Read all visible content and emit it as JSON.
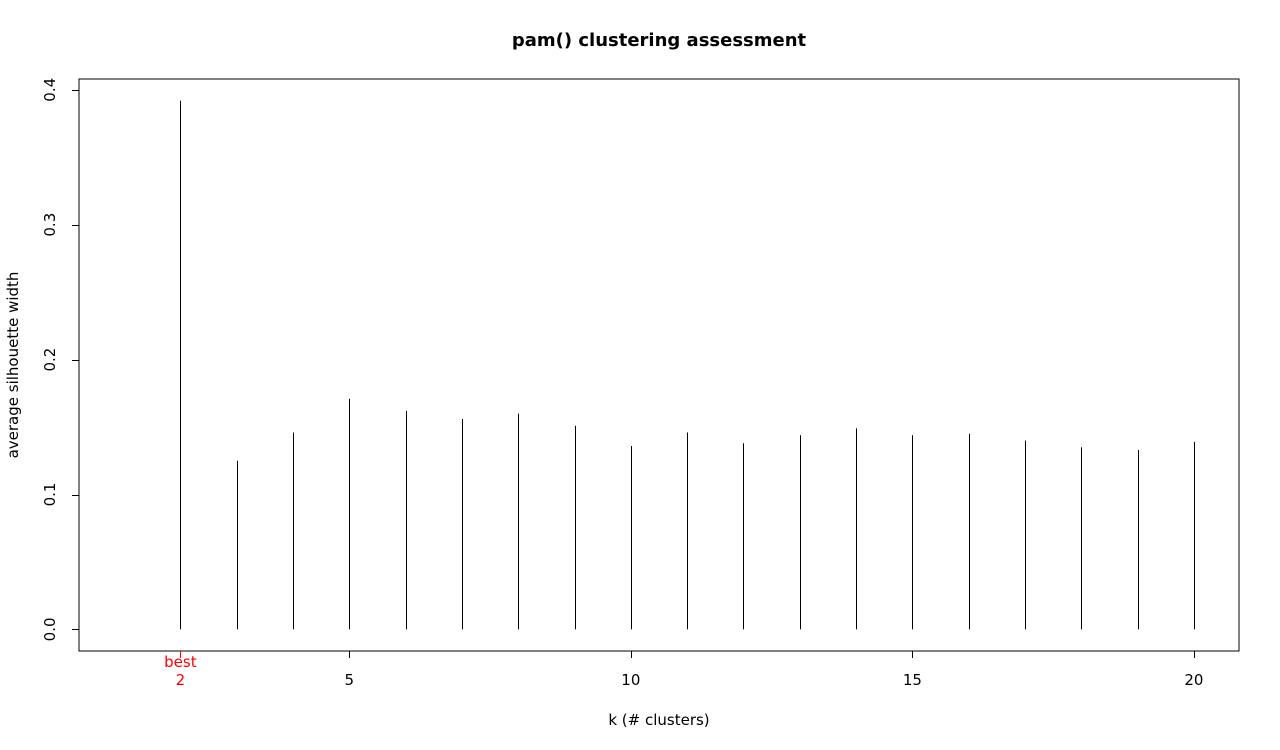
{
  "chart_data": {
    "type": "bar",
    "title": "pam() clustering assessment",
    "xlabel": "k  (# clusters)",
    "ylabel": "average silhouette width",
    "x": [
      1,
      2,
      3,
      4,
      5,
      6,
      7,
      8,
      9,
      10,
      11,
      12,
      13,
      14,
      15,
      16,
      17,
      18,
      19,
      20
    ],
    "values": [
      0.0,
      0.392,
      0.125,
      0.146,
      0.171,
      0.162,
      0.156,
      0.16,
      0.151,
      0.136,
      0.146,
      0.138,
      0.144,
      0.149,
      0.144,
      0.145,
      0.14,
      0.135,
      0.133,
      0.139
    ],
    "xlim": [
      0.2,
      20.8
    ],
    "ylim": [
      -0.016,
      0.408
    ],
    "x_ticks": [
      5,
      10,
      15,
      20
    ],
    "y_ticks": [
      0.0,
      0.1,
      0.2,
      0.3,
      0.4
    ],
    "y_tick_labels": [
      "0.0",
      "0.1",
      "0.2",
      "0.3",
      "0.4"
    ],
    "best": {
      "k": 2,
      "label": "best",
      "k_label": "2",
      "color": "#ff0000"
    },
    "grid": false,
    "line_color": "#000000"
  }
}
